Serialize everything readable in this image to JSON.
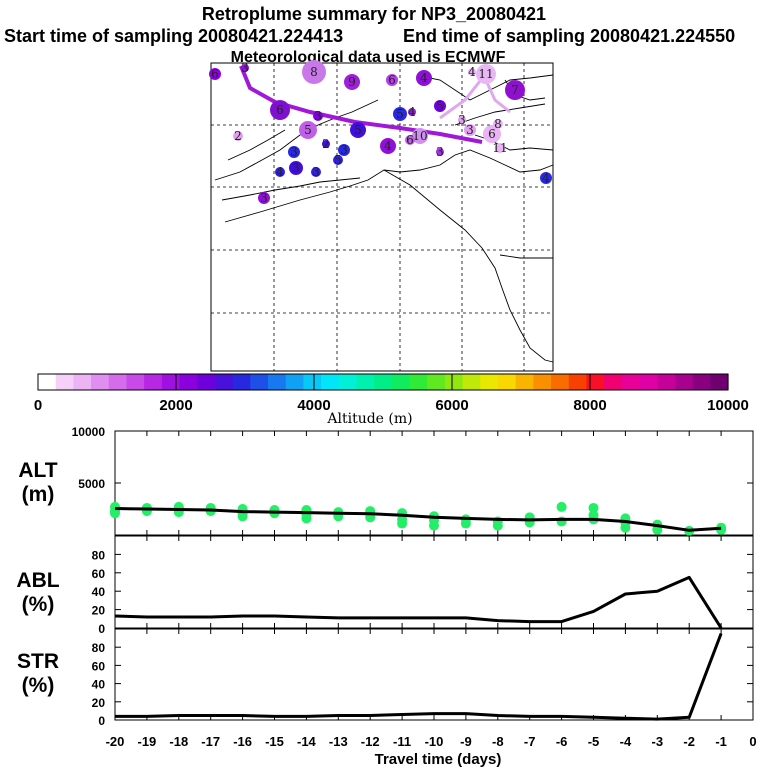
{
  "header": {
    "title": "Retroplume summary for NP3_20080421",
    "start_label": "Start time of sampling 20080421.224413",
    "end_label": "End time of sampling 20080421.224550",
    "met_label": "Meteorological data used is ECMWF"
  },
  "colorbar": {
    "colors": [
      "#ffffff",
      "#f5d0f8",
      "#ecb4f4",
      "#e08ef0",
      "#d46cec",
      "#c84ae8",
      "#b828e4",
      "#a010e0",
      "#8a00de",
      "#6e00dc",
      "#4a10dc",
      "#2828e0",
      "#1e50e8",
      "#1878f0",
      "#10a0f4",
      "#08c8f8",
      "#00e6f8",
      "#00f0d8",
      "#00f0b0",
      "#00ee88",
      "#10ec60",
      "#30ea38",
      "#60e820",
      "#90e810",
      "#c0e808",
      "#e8e800",
      "#f8d800",
      "#f8b400",
      "#f89000",
      "#f86c00",
      "#f84000",
      "#f81028",
      "#f00070",
      "#e80098",
      "#e000a8",
      "#c8009a",
      "#a80090",
      "#880080",
      "#700070"
    ],
    "tick_labels": [
      "0",
      "2000",
      "4000",
      "6000",
      "8000",
      "10000"
    ],
    "label": "Altitude (m)"
  },
  "map": {
    "point_labels": [
      "8",
      "9",
      "6",
      "6",
      "4",
      "11",
      "7",
      "6",
      "5",
      "5",
      "5",
      "5",
      "4",
      "10",
      "3",
      "6",
      "3",
      "3",
      "2",
      "3",
      "4",
      "3",
      "5",
      "3",
      "4",
      "3",
      "4",
      "2",
      "4",
      "11",
      "3",
      "3",
      "3",
      "8",
      "6"
    ]
  },
  "chart_data": [
    {
      "type": "line",
      "name": "ALT",
      "ylabel": "ALT\n(m)",
      "ylabel_lines": [
        "ALT",
        "(m)"
      ],
      "ylim": [
        0,
        10000
      ],
      "yticks": [
        "10000",
        "5000"
      ],
      "x": [
        -20,
        -19,
        -18,
        -17,
        -16,
        -15,
        -14,
        -13,
        -12,
        -11,
        -10,
        -9,
        -8,
        -7,
        -6,
        -5,
        -4,
        -3,
        -2,
        -1
      ],
      "series": [
        {
          "name": "mean altitude",
          "values": [
            2550,
            2500,
            2450,
            2400,
            2250,
            2200,
            2150,
            2100,
            2050,
            1900,
            1700,
            1600,
            1500,
            1450,
            1500,
            1500,
            1300,
            900,
            450,
            650
          ]
        }
      ],
      "scatter_points": [
        [
          -20,
          2700
        ],
        [
          -20,
          2300
        ],
        [
          -20,
          2100
        ],
        [
          -19,
          2600
        ],
        [
          -19,
          2300
        ],
        [
          -18,
          2700
        ],
        [
          -18,
          2400
        ],
        [
          -18,
          2200
        ],
        [
          -17,
          2600
        ],
        [
          -17,
          2300
        ],
        [
          -16,
          2500
        ],
        [
          -16,
          2100
        ],
        [
          -16,
          1800
        ],
        [
          -15,
          2400
        ],
        [
          -15,
          2100
        ],
        [
          -14,
          2400
        ],
        [
          -14,
          2000
        ],
        [
          -14,
          1600
        ],
        [
          -13,
          2200
        ],
        [
          -13,
          1800
        ],
        [
          -12,
          2300
        ],
        [
          -12,
          1700
        ],
        [
          -11,
          2100
        ],
        [
          -11,
          1500
        ],
        [
          -11,
          1100
        ],
        [
          -10,
          1800
        ],
        [
          -10,
          1400
        ],
        [
          -10,
          900
        ],
        [
          -9,
          1500
        ],
        [
          -9,
          1100
        ],
        [
          -8,
          1300
        ],
        [
          -8,
          900
        ],
        [
          -7,
          1700
        ],
        [
          -7,
          1200
        ],
        [
          -6,
          2700
        ],
        [
          -6,
          1300
        ],
        [
          -5,
          2600
        ],
        [
          -5,
          1900
        ],
        [
          -5,
          1500
        ],
        [
          -4,
          1600
        ],
        [
          -4,
          1200
        ],
        [
          -4,
          700
        ],
        [
          -3,
          1000
        ],
        [
          -3,
          500
        ],
        [
          -2,
          400
        ],
        [
          -1,
          700
        ],
        [
          -1,
          500
        ]
      ]
    },
    {
      "type": "line",
      "name": "ABL",
      "ylabel": "ABL\n(%)",
      "ylabel_lines": [
        "ABL",
        "(%)"
      ],
      "ylim": [
        0,
        100
      ],
      "yticks": [
        "80",
        "60",
        "40",
        "20",
        "0"
      ],
      "x": [
        -20,
        -19,
        -18,
        -17,
        -16,
        -15,
        -14,
        -13,
        -12,
        -11,
        -10,
        -9,
        -8,
        -7,
        -6,
        -5,
        -4,
        -3,
        -2,
        -1
      ],
      "series": [
        {
          "name": "ABL fraction",
          "values": [
            13,
            12,
            12,
            12,
            13,
            13,
            12,
            11,
            11,
            11,
            11,
            11,
            8,
            7,
            7,
            18,
            37,
            40,
            55,
            0
          ]
        }
      ]
    },
    {
      "type": "line",
      "name": "STR",
      "ylabel": "STR\n(%)",
      "ylabel_lines": [
        "STR",
        "(%)"
      ],
      "ylim": [
        0,
        100
      ],
      "yticks": [
        "80",
        "60",
        "40",
        "20",
        "0"
      ],
      "x": [
        -20,
        -19,
        -18,
        -17,
        -16,
        -15,
        -14,
        -13,
        -12,
        -11,
        -10,
        -9,
        -8,
        -7,
        -6,
        -5,
        -4,
        -3,
        -2,
        -1
      ],
      "series": [
        {
          "name": "STR fraction",
          "values": [
            4,
            4,
            5,
            5,
            5,
            4,
            4,
            5,
            5,
            6,
            7,
            7,
            5,
            4,
            4,
            3,
            2,
            1,
            3,
            95
          ]
        }
      ]
    }
  ],
  "xaxis": {
    "tick_labels": [
      "-20",
      "-19",
      "-18",
      "-17",
      "-16",
      "-15",
      "-14",
      "-13",
      "-12",
      "-11",
      "-10",
      "-9",
      "-8",
      "-7",
      "-6",
      "-5",
      "-4",
      "-3",
      "-2",
      "-1",
      "0"
    ],
    "label": "Travel time (days)"
  }
}
